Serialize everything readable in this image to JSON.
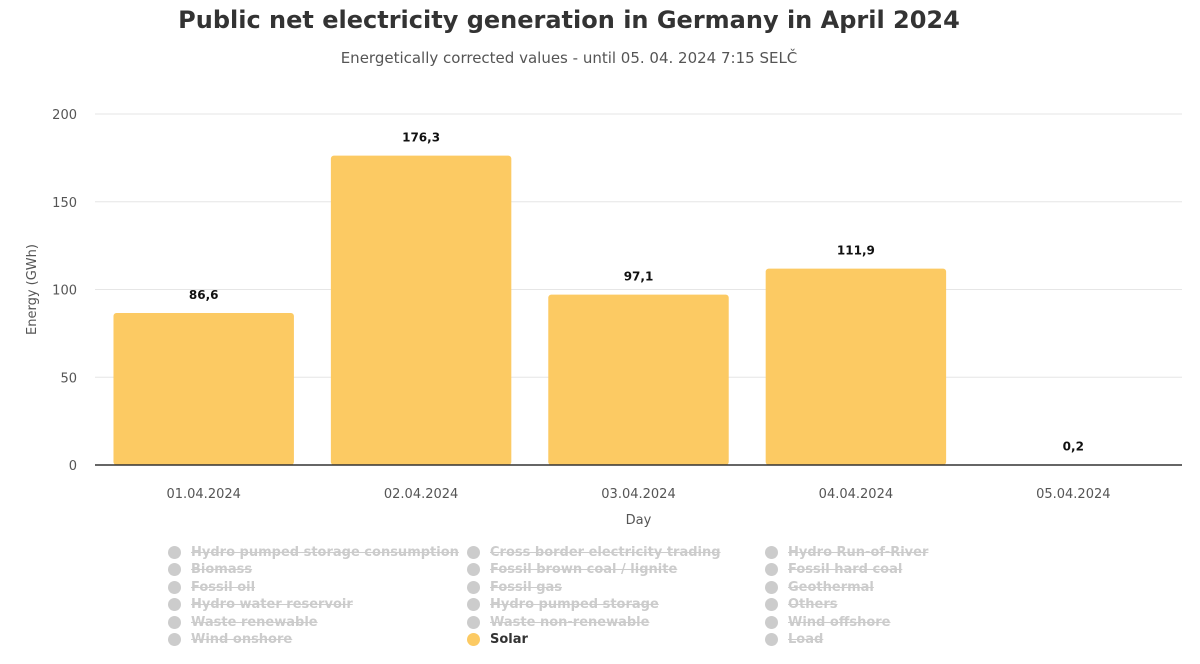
{
  "chart_data": {
    "type": "bar",
    "title": "Public net electricity generation in Germany in April 2024",
    "subtitle": "Energetically corrected values - until 05. 04. 2024 7:15 SELČ",
    "xlabel": "Day",
    "ylabel": "Energy (GWh)",
    "ylim": [
      0,
      200
    ],
    "yticks": [
      "0",
      "50",
      "100",
      "150",
      "200"
    ],
    "categories": [
      "01.04.2024",
      "02.04.2024",
      "03.04.2024",
      "04.04.2024",
      "05.04.2024"
    ],
    "series": [
      {
        "name": "Solar",
        "color": "#fcca63",
        "values": [
          86.6,
          176.3,
          97.1,
          111.9,
          0.2
        ],
        "labels": [
          "86,6",
          "176,3",
          "97,1",
          "111,9",
          "0,2"
        ]
      }
    ],
    "grid": true,
    "legend_position": "bottom",
    "legend": [
      {
        "name": "Hydro pumped storage consumption",
        "active": false
      },
      {
        "name": "Cross border electricity trading",
        "active": false
      },
      {
        "name": "Hydro Run-of-River",
        "active": false
      },
      {
        "name": "Biomass",
        "active": false
      },
      {
        "name": "Fossil brown coal / lignite",
        "active": false
      },
      {
        "name": "Fossil hard coal",
        "active": false
      },
      {
        "name": "Fossil oil",
        "active": false
      },
      {
        "name": "Fossil gas",
        "active": false
      },
      {
        "name": "Geothermal",
        "active": false
      },
      {
        "name": "Hydro water reservoir",
        "active": false
      },
      {
        "name": "Hydro pumped storage",
        "active": false
      },
      {
        "name": "Others",
        "active": false
      },
      {
        "name": "Waste renewable",
        "active": false
      },
      {
        "name": "Waste non-renewable",
        "active": false
      },
      {
        "name": "Wind offshore",
        "active": false
      },
      {
        "name": "Wind onshore",
        "active": false
      },
      {
        "name": "Solar",
        "active": true
      },
      {
        "name": "Load",
        "active": false
      }
    ],
    "colors": {
      "inactive": "#cccccc",
      "active_text": "#333333",
      "grid": "#e6e6e6",
      "axis": "#333333"
    }
  }
}
